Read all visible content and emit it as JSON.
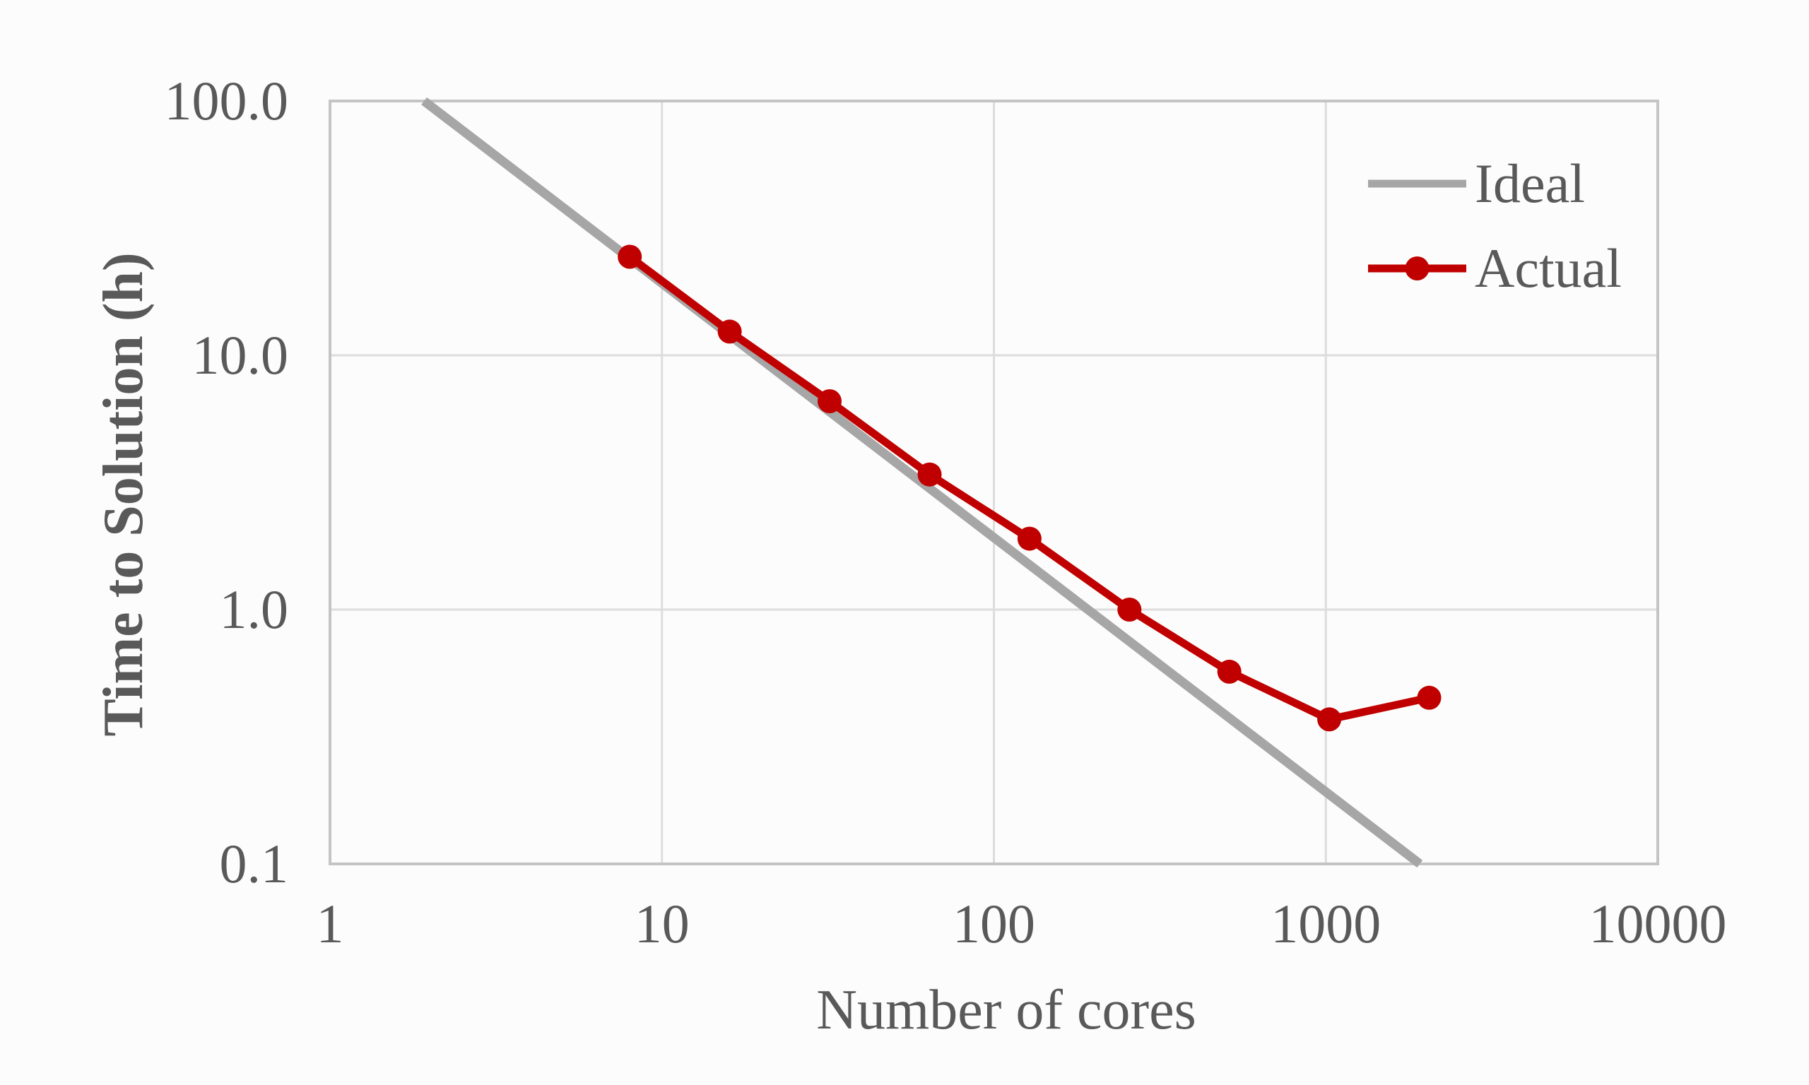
{
  "chart_data": {
    "type": "line",
    "title": "",
    "xlabel": "Number of cores",
    "ylabel": "Time to Solution (h)",
    "x_scale": "log",
    "y_scale": "log",
    "xlim": [
      1,
      10000
    ],
    "ylim": [
      0.1,
      100
    ],
    "x_ticks": {
      "values": [
        1,
        10,
        100,
        1000,
        10000
      ],
      "labels": [
        "1",
        "10",
        "100",
        "1000",
        "10000"
      ]
    },
    "y_ticks": {
      "values": [
        100,
        10,
        1,
        0.1
      ],
      "labels": [
        "100.0",
        "10.0",
        "1.0",
        "0.1"
      ]
    },
    "grid": true,
    "legend_position": "inside-top-right",
    "series": [
      {
        "name": "Ideal",
        "color": "#A6A6A6",
        "marker": false,
        "stroke_width": 13,
        "x": [
          1.92,
          1920
        ],
        "y": [
          100,
          0.1
        ]
      },
      {
        "name": "Actual",
        "color": "#C00000",
        "marker": true,
        "stroke_width": 11,
        "x": [
          8,
          16,
          32,
          64,
          128,
          256,
          512,
          1024,
          2048
        ],
        "y": [
          24.4,
          12.4,
          6.6,
          3.4,
          1.9,
          1.0,
          0.57,
          0.37,
          0.45
        ]
      }
    ]
  },
  "colors": {
    "text": "#595959",
    "grid": "#DDDDDD",
    "plot_border": "#C4C4C4",
    "background": "#FCFCFC",
    "ideal_line": "#A6A6A6",
    "actual_line": "#C00000"
  }
}
